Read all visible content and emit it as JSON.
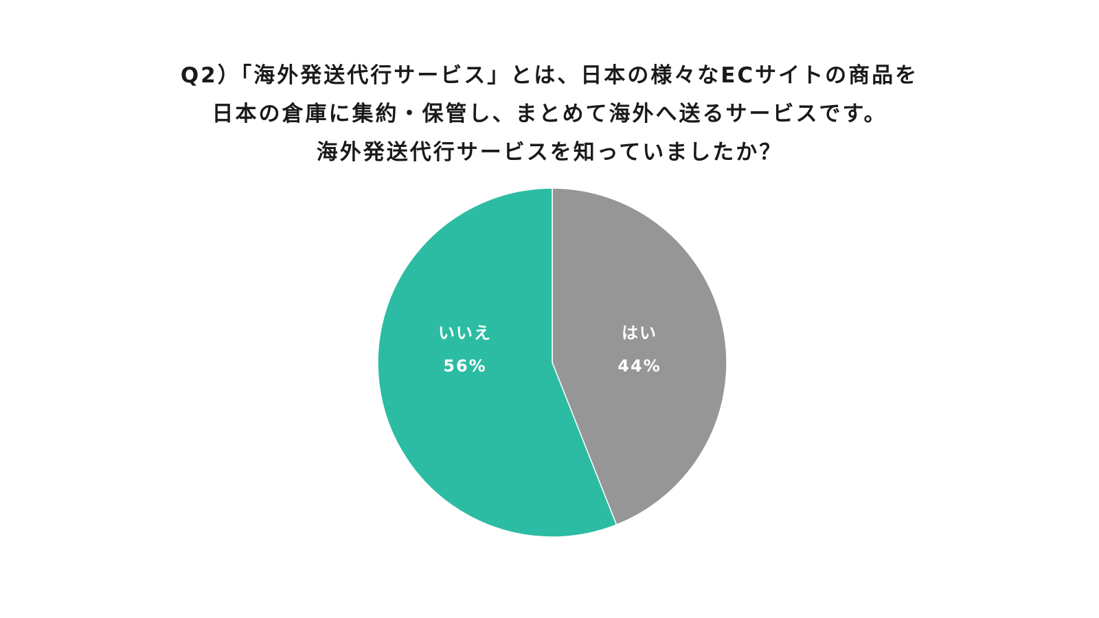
{
  "title": {
    "line1": "Q2）「海外発送代行サービス」とは、日本の様々なECサイトの商品を",
    "line2": "日本の倉庫に集約・保管し、まとめて海外へ送るサービスです。",
    "line3": "海外発送代行サービスを知っていましたか？"
  },
  "chart_data": {
    "type": "pie",
    "title": "Q2）「海外発送代行サービス」とは、日本の様々なECサイトの商品を日本の倉庫に集約・保管し、まとめて海外へ送るサービスです。海外発送代行サービスを知っていましたか？",
    "start": "12 o'clock, clockwise",
    "slices": [
      {
        "label": "はい",
        "value": 44,
        "value_label": "44%",
        "color": "#969696"
      },
      {
        "label": "いいえ",
        "value": 56,
        "value_label": "56%",
        "color": "#2cbca3"
      }
    ],
    "legend": "none"
  }
}
